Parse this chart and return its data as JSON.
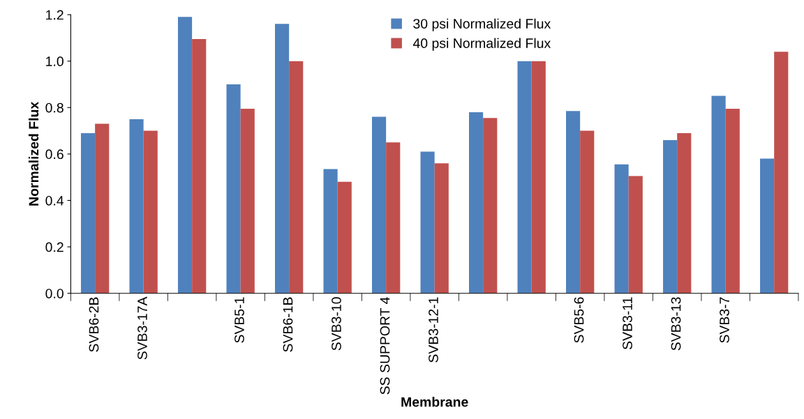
{
  "chart_data": {
    "type": "bar",
    "xlabel": "Membrane",
    "ylabel": "Normalized Flux",
    "categories": [
      "SVB6-2B",
      "SVB3-17A",
      null,
      "SVB5-1",
      "SVB6-1B",
      "SVB3-10",
      "SS SUPPORT 4",
      "SVB3-12-1",
      null,
      null,
      "SVB5-6",
      "SVB3-11",
      "SVB3-13",
      "SVB3-7",
      null
    ],
    "series": [
      {
        "name": "30 psi Normalized Flux",
        "color": "#4f81bd",
        "values": [
          0.69,
          0.75,
          1.19,
          0.9,
          1.16,
          0.535,
          0.76,
          0.61,
          0.78,
          1.0,
          0.785,
          0.555,
          0.66,
          0.85,
          0.58
        ]
      },
      {
        "name": "40 psi Normalized Flux",
        "color": "#c0504d",
        "values": [
          0.73,
          0.7,
          1.095,
          0.795,
          1.0,
          0.48,
          0.65,
          0.56,
          0.755,
          1.0,
          0.7,
          0.505,
          0.69,
          0.795,
          1.04
        ]
      }
    ],
    "ylim": [
      0,
      1.2
    ],
    "yticks": [
      {
        "value": 0,
        "label": "0.0"
      },
      {
        "value": 0.2,
        "label": "0.2"
      },
      {
        "value": 0.4,
        "label": "0.4"
      },
      {
        "value": 0.6,
        "label": "0.6"
      },
      {
        "value": 0.8,
        "label": "0.8"
      },
      {
        "value": 1.0,
        "label": "1.0"
      },
      {
        "value": 1.2,
        "label": "1.2"
      }
    ],
    "grid": false,
    "legend": "top"
  }
}
